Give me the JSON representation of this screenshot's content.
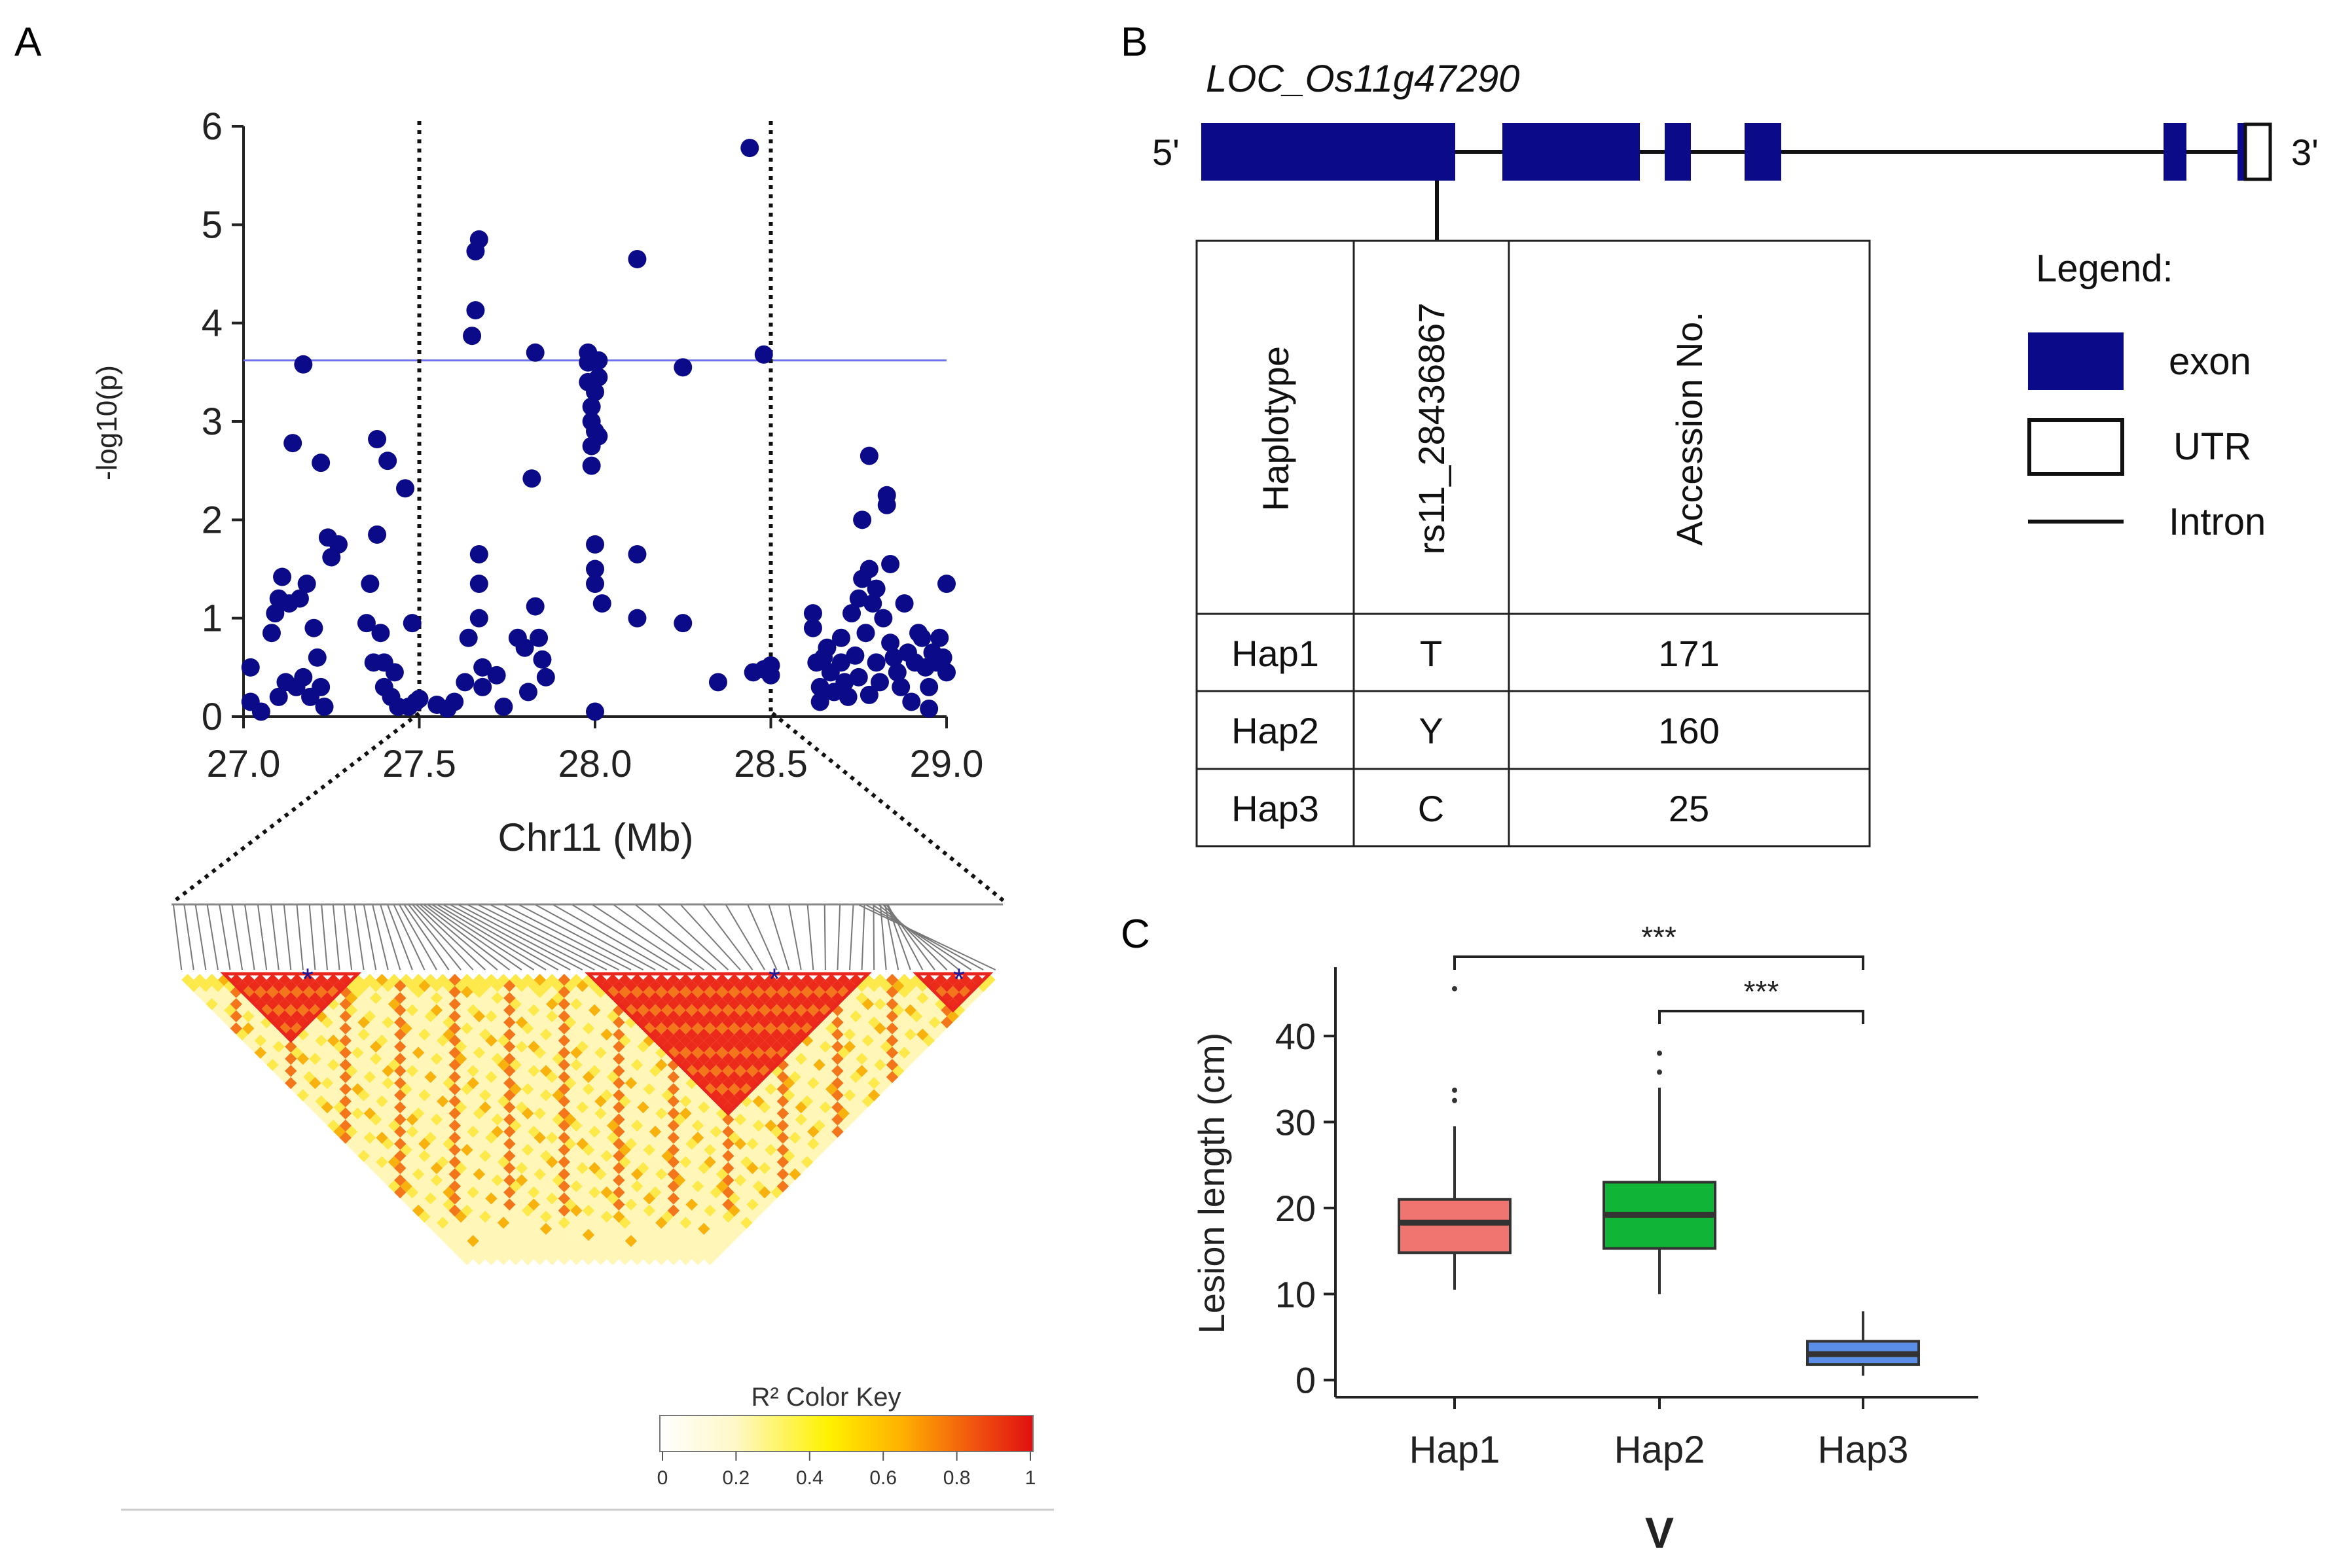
{
  "panel_labels": {
    "a": "A",
    "b": "B",
    "c": "C"
  },
  "colors": {
    "point": "#0b0b8a",
    "threshold": "#6f72f0",
    "exon": "#0b0b8a",
    "hap1": "#f07470",
    "hap2": "#10b437",
    "hap3": "#5b8ee6",
    "ld_block": "#e8251f"
  },
  "chart_data": [
    {
      "type": "scatter",
      "title": "",
      "xlabel": "Chr11 (Mb)",
      "ylabel": "-log10(p)",
      "xlim": [
        27.0,
        29.0
      ],
      "ylim": [
        0,
        6
      ],
      "xticks": [
        "27.0",
        "27.5",
        "28.0",
        "28.5",
        "29.0"
      ],
      "yticks": [
        "0",
        "1",
        "2",
        "3",
        "4",
        "5",
        "6"
      ],
      "threshold": 3.62,
      "region_lines": [
        27.5,
        28.5
      ],
      "points": [
        [
          27.02,
          0.5
        ],
        [
          27.02,
          0.15
        ],
        [
          27.05,
          0.05
        ],
        [
          27.08,
          0.85
        ],
        [
          27.09,
          1.05
        ],
        [
          27.1,
          1.2
        ],
        [
          27.11,
          1.42
        ],
        [
          27.1,
          0.2
        ],
        [
          27.12,
          0.35
        ],
        [
          27.13,
          1.15
        ],
        [
          27.14,
          2.78
        ],
        [
          27.15,
          0.3
        ],
        [
          27.16,
          1.2
        ],
        [
          27.17,
          3.58
        ],
        [
          27.17,
          0.4
        ],
        [
          27.18,
          1.35
        ],
        [
          27.19,
          0.2
        ],
        [
          27.2,
          0.9
        ],
        [
          27.21,
          0.6
        ],
        [
          27.22,
          0.3
        ],
        [
          27.22,
          2.58
        ],
        [
          27.23,
          0.1
        ],
        [
          27.24,
          1.82
        ],
        [
          27.25,
          1.62
        ],
        [
          27.27,
          1.75
        ],
        [
          27.35,
          0.95
        ],
        [
          27.36,
          1.35
        ],
        [
          27.37,
          0.55
        ],
        [
          27.38,
          2.82
        ],
        [
          27.38,
          1.85
        ],
        [
          27.39,
          0.85
        ],
        [
          27.4,
          0.55
        ],
        [
          27.4,
          0.3
        ],
        [
          27.41,
          2.6
        ],
        [
          27.42,
          0.2
        ],
        [
          27.43,
          0.45
        ],
        [
          27.44,
          0.1
        ],
        [
          27.46,
          2.32
        ],
        [
          27.47,
          0.1
        ],
        [
          27.48,
          0.95
        ],
        [
          27.49,
          0.15
        ],
        [
          27.5,
          0.18
        ],
        [
          27.55,
          0.12
        ],
        [
          27.58,
          0.08
        ],
        [
          27.6,
          0.15
        ],
        [
          27.63,
          0.35
        ],
        [
          27.64,
          0.8
        ],
        [
          27.65,
          3.87
        ],
        [
          27.66,
          4.13
        ],
        [
          27.66,
          4.73
        ],
        [
          27.67,
          4.85
        ],
        [
          27.67,
          1.65
        ],
        [
          27.67,
          1.35
        ],
        [
          27.67,
          1.0
        ],
        [
          27.68,
          0.5
        ],
        [
          27.68,
          0.3
        ],
        [
          27.72,
          0.42
        ],
        [
          27.74,
          0.1
        ],
        [
          27.78,
          0.8
        ],
        [
          27.8,
          0.7
        ],
        [
          27.81,
          0.25
        ],
        [
          27.82,
          2.42
        ],
        [
          27.83,
          1.12
        ],
        [
          27.83,
          3.7
        ],
        [
          27.84,
          0.8
        ],
        [
          27.85,
          0.58
        ],
        [
          27.86,
          0.4
        ],
        [
          27.98,
          3.7
        ],
        [
          27.98,
          3.6
        ],
        [
          27.98,
          3.4
        ],
        [
          27.99,
          3.15
        ],
        [
          27.99,
          3.0
        ],
        [
          27.99,
          2.75
        ],
        [
          27.99,
          2.55
        ],
        [
          28.0,
          3.3
        ],
        [
          28.0,
          2.9
        ],
        [
          28.0,
          1.75
        ],
        [
          28.0,
          1.5
        ],
        [
          28.0,
          1.35
        ],
        [
          28.0,
          0.05
        ],
        [
          28.01,
          3.62
        ],
        [
          28.01,
          3.45
        ],
        [
          28.01,
          2.85
        ],
        [
          28.02,
          1.15
        ],
        [
          28.12,
          4.65
        ],
        [
          28.12,
          1.65
        ],
        [
          28.12,
          1.0
        ],
        [
          28.25,
          3.55
        ],
        [
          28.25,
          0.95
        ],
        [
          28.35,
          0.35
        ],
        [
          28.44,
          5.78
        ],
        [
          28.45,
          0.45
        ],
        [
          28.48,
          3.68
        ],
        [
          28.48,
          0.48
        ],
        [
          28.5,
          0.42
        ],
        [
          28.5,
          0.52
        ],
        [
          28.62,
          1.05
        ],
        [
          28.62,
          0.9
        ],
        [
          28.63,
          0.55
        ],
        [
          28.64,
          0.3
        ],
        [
          28.64,
          0.15
        ],
        [
          28.65,
          0.6
        ],
        [
          28.66,
          0.7
        ],
        [
          28.67,
          0.45
        ],
        [
          28.68,
          0.25
        ],
        [
          28.7,
          0.8
        ],
        [
          28.7,
          0.55
        ],
        [
          28.71,
          0.35
        ],
        [
          28.72,
          0.2
        ],
        [
          28.73,
          1.05
        ],
        [
          28.74,
          0.62
        ],
        [
          28.75,
          1.2
        ],
        [
          28.75,
          0.4
        ],
        [
          28.76,
          1.4
        ],
        [
          28.76,
          2.0
        ],
        [
          28.77,
          0.85
        ],
        [
          28.78,
          0.22
        ],
        [
          28.78,
          1.5
        ],
        [
          28.78,
          2.65
        ],
        [
          28.79,
          1.15
        ],
        [
          28.8,
          1.3
        ],
        [
          28.8,
          0.55
        ],
        [
          28.81,
          0.35
        ],
        [
          28.82,
          1.0
        ],
        [
          28.83,
          2.25
        ],
        [
          28.83,
          2.15
        ],
        [
          28.84,
          1.55
        ],
        [
          28.84,
          0.75
        ],
        [
          28.85,
          0.6
        ],
        [
          28.86,
          0.45
        ],
        [
          28.87,
          0.3
        ],
        [
          28.88,
          1.15
        ],
        [
          28.89,
          0.65
        ],
        [
          28.9,
          0.15
        ],
        [
          28.91,
          0.55
        ],
        [
          28.92,
          0.85
        ],
        [
          28.93,
          0.8
        ],
        [
          28.94,
          0.5
        ],
        [
          28.95,
          0.3
        ],
        [
          28.95,
          0.08
        ],
        [
          28.96,
          0.65
        ],
        [
          28.97,
          0.55
        ],
        [
          28.98,
          0.8
        ],
        [
          28.99,
          0.6
        ],
        [
          29.0,
          1.35
        ],
        [
          29.0,
          0.45
        ]
      ]
    },
    {
      "type": "heatmap",
      "title": "R² Color Key",
      "ticks": [
        "0",
        "0.2",
        "0.4",
        "0.6",
        "0.8",
        "1"
      ],
      "star": "*"
    },
    {
      "type": "table",
      "gene": "LOC_Os11g47290",
      "five_prime": "5'",
      "three_prime": "3'",
      "legend_title": "Legend:",
      "legend_items": [
        "exon",
        "UTR",
        "Intron"
      ],
      "columns": [
        "Haplotype",
        "rs11_28436867",
        "Accession No."
      ],
      "rows": [
        [
          "Hap1",
          "T",
          "171"
        ],
        [
          "Hap2",
          "Y",
          "160"
        ],
        [
          "Hap3",
          "C",
          "25"
        ]
      ]
    },
    {
      "type": "box",
      "ylabel": "Lesion length (cm)",
      "xlabel": "V",
      "ylim": [
        -2,
        48
      ],
      "yticks": [
        "0",
        "10",
        "20",
        "30",
        "40"
      ],
      "categories": [
        "Hap1",
        "Hap2",
        "Hap3"
      ],
      "boxes": [
        {
          "name": "Hap1",
          "min": 10.5,
          "q1": 14.8,
          "median": 18.3,
          "q3": 21.0,
          "max": 29.5,
          "outliers": [
            45.5,
            33.7,
            32.5
          ]
        },
        {
          "name": "Hap2",
          "min": 10.0,
          "q1": 15.3,
          "median": 19.2,
          "q3": 23.0,
          "max": 34.0,
          "outliers": [
            38.0,
            35.8
          ]
        },
        {
          "name": "Hap3",
          "min": 0.5,
          "q1": 1.8,
          "median": 3.0,
          "q3": 4.5,
          "max": 8.0,
          "outliers": []
        }
      ],
      "significance": [
        {
          "from": "Hap1",
          "to": "Hap3",
          "label": "***"
        },
        {
          "from": "Hap2",
          "to": "Hap3",
          "label": "***"
        }
      ]
    }
  ]
}
